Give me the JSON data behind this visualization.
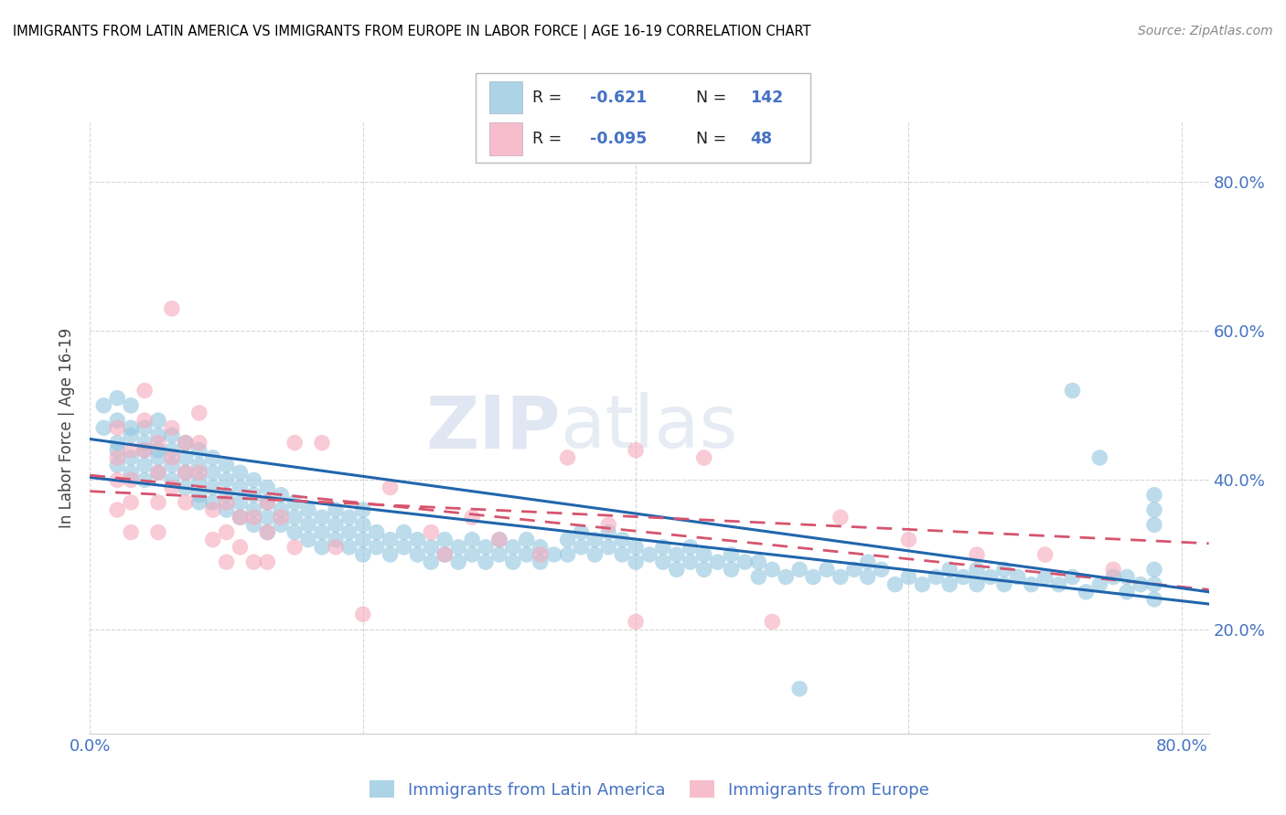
{
  "title": "IMMIGRANTS FROM LATIN AMERICA VS IMMIGRANTS FROM EUROPE IN LABOR FORCE | AGE 16-19 CORRELATION CHART",
  "source": "Source: ZipAtlas.com",
  "ylabel": "In Labor Force | Age 16-19",
  "legend": {
    "blue_r": "-0.621",
    "blue_n": "142",
    "pink_r": "-0.095",
    "pink_n": "48"
  },
  "blue_color": "#92c5de",
  "pink_color": "#f4a9bc",
  "trend_blue": "#2166ac",
  "trend_pink": "#d6546e",
  "watermark_zip": "ZIP",
  "watermark_atlas": "atlas",
  "xlim": [
    0.0,
    0.82
  ],
  "ylim": [
    0.06,
    0.88
  ],
  "yticks": [
    0.2,
    0.4,
    0.6,
    0.8
  ],
  "ytick_labels": [
    "20.0%",
    "40.0%",
    "60.0%",
    "80.0%"
  ],
  "xticks": [
    0.0,
    0.2,
    0.4,
    0.6,
    0.8
  ],
  "blue_scatter": [
    [
      0.01,
      0.47
    ],
    [
      0.01,
      0.5
    ],
    [
      0.02,
      0.45
    ],
    [
      0.02,
      0.48
    ],
    [
      0.02,
      0.51
    ],
    [
      0.02,
      0.44
    ],
    [
      0.02,
      0.42
    ],
    [
      0.03,
      0.46
    ],
    [
      0.03,
      0.43
    ],
    [
      0.03,
      0.41
    ],
    [
      0.03,
      0.5
    ],
    [
      0.03,
      0.47
    ],
    [
      0.04,
      0.44
    ],
    [
      0.04,
      0.42
    ],
    [
      0.04,
      0.4
    ],
    [
      0.04,
      0.47
    ],
    [
      0.04,
      0.45
    ],
    [
      0.05,
      0.43
    ],
    [
      0.05,
      0.41
    ],
    [
      0.05,
      0.46
    ],
    [
      0.05,
      0.44
    ],
    [
      0.05,
      0.48
    ],
    [
      0.06,
      0.42
    ],
    [
      0.06,
      0.4
    ],
    [
      0.06,
      0.44
    ],
    [
      0.06,
      0.46
    ],
    [
      0.07,
      0.41
    ],
    [
      0.07,
      0.39
    ],
    [
      0.07,
      0.43
    ],
    [
      0.07,
      0.45
    ],
    [
      0.08,
      0.4
    ],
    [
      0.08,
      0.38
    ],
    [
      0.08,
      0.42
    ],
    [
      0.08,
      0.44
    ],
    [
      0.08,
      0.37
    ],
    [
      0.09,
      0.39
    ],
    [
      0.09,
      0.37
    ],
    [
      0.09,
      0.41
    ],
    [
      0.09,
      0.43
    ],
    [
      0.1,
      0.38
    ],
    [
      0.1,
      0.36
    ],
    [
      0.1,
      0.4
    ],
    [
      0.1,
      0.42
    ],
    [
      0.11,
      0.37
    ],
    [
      0.11,
      0.35
    ],
    [
      0.11,
      0.39
    ],
    [
      0.11,
      0.41
    ],
    [
      0.12,
      0.36
    ],
    [
      0.12,
      0.34
    ],
    [
      0.12,
      0.38
    ],
    [
      0.12,
      0.4
    ],
    [
      0.13,
      0.35
    ],
    [
      0.13,
      0.33
    ],
    [
      0.13,
      0.37
    ],
    [
      0.13,
      0.39
    ],
    [
      0.14,
      0.34
    ],
    [
      0.14,
      0.36
    ],
    [
      0.14,
      0.38
    ],
    [
      0.15,
      0.33
    ],
    [
      0.15,
      0.35
    ],
    [
      0.15,
      0.37
    ],
    [
      0.16,
      0.32
    ],
    [
      0.16,
      0.34
    ],
    [
      0.16,
      0.36
    ],
    [
      0.17,
      0.31
    ],
    [
      0.17,
      0.33
    ],
    [
      0.17,
      0.35
    ],
    [
      0.18,
      0.32
    ],
    [
      0.18,
      0.34
    ],
    [
      0.18,
      0.36
    ],
    [
      0.19,
      0.31
    ],
    [
      0.19,
      0.33
    ],
    [
      0.19,
      0.35
    ],
    [
      0.2,
      0.3
    ],
    [
      0.2,
      0.32
    ],
    [
      0.2,
      0.34
    ],
    [
      0.2,
      0.36
    ],
    [
      0.21,
      0.31
    ],
    [
      0.21,
      0.33
    ],
    [
      0.22,
      0.3
    ],
    [
      0.22,
      0.32
    ],
    [
      0.23,
      0.31
    ],
    [
      0.23,
      0.33
    ],
    [
      0.24,
      0.3
    ],
    [
      0.24,
      0.32
    ],
    [
      0.25,
      0.29
    ],
    [
      0.25,
      0.31
    ],
    [
      0.26,
      0.3
    ],
    [
      0.26,
      0.32
    ],
    [
      0.27,
      0.29
    ],
    [
      0.27,
      0.31
    ],
    [
      0.28,
      0.3
    ],
    [
      0.28,
      0.32
    ],
    [
      0.29,
      0.29
    ],
    [
      0.29,
      0.31
    ],
    [
      0.3,
      0.3
    ],
    [
      0.3,
      0.32
    ],
    [
      0.31,
      0.29
    ],
    [
      0.31,
      0.31
    ],
    [
      0.32,
      0.3
    ],
    [
      0.32,
      0.32
    ],
    [
      0.33,
      0.29
    ],
    [
      0.33,
      0.31
    ],
    [
      0.34,
      0.3
    ],
    [
      0.35,
      0.32
    ],
    [
      0.35,
      0.3
    ],
    [
      0.36,
      0.31
    ],
    [
      0.36,
      0.33
    ],
    [
      0.37,
      0.3
    ],
    [
      0.37,
      0.32
    ],
    [
      0.38,
      0.31
    ],
    [
      0.38,
      0.33
    ],
    [
      0.39,
      0.3
    ],
    [
      0.39,
      0.32
    ],
    [
      0.4,
      0.29
    ],
    [
      0.4,
      0.31
    ],
    [
      0.41,
      0.3
    ],
    [
      0.42,
      0.29
    ],
    [
      0.42,
      0.31
    ],
    [
      0.43,
      0.28
    ],
    [
      0.43,
      0.3
    ],
    [
      0.44,
      0.29
    ],
    [
      0.44,
      0.31
    ],
    [
      0.45,
      0.28
    ],
    [
      0.45,
      0.3
    ],
    [
      0.46,
      0.29
    ],
    [
      0.47,
      0.28
    ],
    [
      0.47,
      0.3
    ],
    [
      0.48,
      0.29
    ],
    [
      0.49,
      0.27
    ],
    [
      0.49,
      0.29
    ],
    [
      0.5,
      0.28
    ],
    [
      0.51,
      0.27
    ],
    [
      0.52,
      0.28
    ],
    [
      0.53,
      0.27
    ],
    [
      0.54,
      0.28
    ],
    [
      0.55,
      0.27
    ],
    [
      0.56,
      0.28
    ],
    [
      0.57,
      0.27
    ],
    [
      0.57,
      0.29
    ],
    [
      0.58,
      0.28
    ],
    [
      0.59,
      0.26
    ],
    [
      0.6,
      0.27
    ],
    [
      0.61,
      0.26
    ],
    [
      0.62,
      0.27
    ],
    [
      0.63,
      0.26
    ],
    [
      0.63,
      0.28
    ],
    [
      0.64,
      0.27
    ],
    [
      0.65,
      0.26
    ],
    [
      0.65,
      0.28
    ],
    [
      0.66,
      0.27
    ],
    [
      0.67,
      0.26
    ],
    [
      0.67,
      0.28
    ],
    [
      0.68,
      0.27
    ],
    [
      0.69,
      0.26
    ],
    [
      0.7,
      0.27
    ],
    [
      0.71,
      0.26
    ],
    [
      0.72,
      0.27
    ],
    [
      0.73,
      0.25
    ],
    [
      0.74,
      0.26
    ],
    [
      0.75,
      0.27
    ],
    [
      0.76,
      0.25
    ],
    [
      0.76,
      0.27
    ],
    [
      0.77,
      0.26
    ],
    [
      0.52,
      0.12
    ],
    [
      0.72,
      0.52
    ],
    [
      0.74,
      0.43
    ],
    [
      0.78,
      0.38
    ],
    [
      0.78,
      0.36
    ],
    [
      0.78,
      0.34
    ],
    [
      0.78,
      0.28
    ],
    [
      0.78,
      0.26
    ],
    [
      0.78,
      0.24
    ]
  ],
  "pink_scatter": [
    [
      0.02,
      0.47
    ],
    [
      0.02,
      0.43
    ],
    [
      0.02,
      0.4
    ],
    [
      0.02,
      0.36
    ],
    [
      0.03,
      0.44
    ],
    [
      0.03,
      0.4
    ],
    [
      0.03,
      0.37
    ],
    [
      0.03,
      0.33
    ],
    [
      0.04,
      0.52
    ],
    [
      0.04,
      0.48
    ],
    [
      0.04,
      0.44
    ],
    [
      0.05,
      0.45
    ],
    [
      0.05,
      0.41
    ],
    [
      0.05,
      0.37
    ],
    [
      0.05,
      0.33
    ],
    [
      0.06,
      0.63
    ],
    [
      0.06,
      0.47
    ],
    [
      0.06,
      0.43
    ],
    [
      0.06,
      0.39
    ],
    [
      0.07,
      0.45
    ],
    [
      0.07,
      0.41
    ],
    [
      0.07,
      0.37
    ],
    [
      0.08,
      0.49
    ],
    [
      0.08,
      0.45
    ],
    [
      0.08,
      0.41
    ],
    [
      0.09,
      0.36
    ],
    [
      0.09,
      0.32
    ],
    [
      0.1,
      0.37
    ],
    [
      0.1,
      0.33
    ],
    [
      0.1,
      0.29
    ],
    [
      0.11,
      0.35
    ],
    [
      0.11,
      0.31
    ],
    [
      0.12,
      0.35
    ],
    [
      0.12,
      0.29
    ],
    [
      0.13,
      0.37
    ],
    [
      0.13,
      0.33
    ],
    [
      0.13,
      0.29
    ],
    [
      0.14,
      0.35
    ],
    [
      0.15,
      0.45
    ],
    [
      0.15,
      0.31
    ],
    [
      0.17,
      0.45
    ],
    [
      0.18,
      0.31
    ],
    [
      0.2,
      0.22
    ],
    [
      0.22,
      0.39
    ],
    [
      0.25,
      0.33
    ],
    [
      0.26,
      0.3
    ],
    [
      0.28,
      0.35
    ],
    [
      0.3,
      0.32
    ],
    [
      0.33,
      0.3
    ],
    [
      0.35,
      0.43
    ],
    [
      0.38,
      0.34
    ],
    [
      0.4,
      0.44
    ],
    [
      0.4,
      0.21
    ],
    [
      0.45,
      0.43
    ],
    [
      0.5,
      0.21
    ],
    [
      0.55,
      0.35
    ],
    [
      0.6,
      0.32
    ],
    [
      0.65,
      0.3
    ],
    [
      0.7,
      0.3
    ],
    [
      0.75,
      0.28
    ]
  ]
}
